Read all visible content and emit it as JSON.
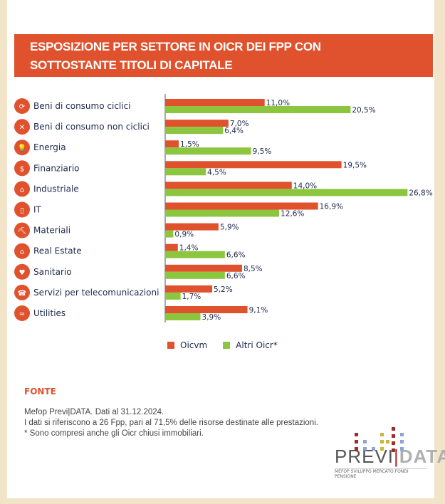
{
  "title_lines": [
    "ESPOSIZIONE PER SETTORE IN OICR DEI FPP CON",
    "SOTTOSTANTE  TITOLI DI CAPITALE"
  ],
  "chart_data": {
    "type": "bar",
    "orientation": "horizontal",
    "categories": [
      "Beni di consumo ciclici",
      "Beni di consumo non ciclici",
      "Energia",
      "Finanziario",
      "Industriale",
      "IT",
      "Materiali",
      "Real Estate",
      "Sanitario",
      "Servizi per telecomunicazioni",
      "Utilities"
    ],
    "series": [
      {
        "name": "Oicvm",
        "color": "#e0522d",
        "values": [
          11.0,
          7.0,
          1.5,
          19.5,
          14.0,
          16.9,
          5.9,
          1.4,
          8.5,
          5.2,
          9.1
        ],
        "labels": [
          "11,0%",
          "7,0%",
          "1,5%",
          "19,5%",
          "14,0%",
          "16,9%",
          "5,9%",
          "1,4%",
          "8,5%",
          "5,2%",
          "9,1%"
        ]
      },
      {
        "name": "Altri Oicr*",
        "color": "#8cc63f",
        "values": [
          20.5,
          6.4,
          9.5,
          4.5,
          26.8,
          12.6,
          0.9,
          6.6,
          6.6,
          1.7,
          3.9
        ],
        "labels": [
          "20,5%",
          "6,4%",
          "9,5%",
          "4,5%",
          "26,8%",
          "12,6%",
          "0,9%",
          "6,6%",
          "6,6%",
          "1,7%",
          "3,9%"
        ]
      }
    ],
    "xlim": [
      0,
      30
    ],
    "legend": "bottom"
  },
  "fonte": {
    "label": "FONTE",
    "lines": [
      "Mefop Previ|DATA. Dati al 31.12.2024.",
      "I dati si riferiscono a 26 Fpp, pari al 71,5% delle risorse destinate alle prestazioni.",
      "* Sono compresi anche gli Oicr chiusi immobiliari."
    ]
  },
  "logo": {
    "a": "PREVI",
    "b": "DATA",
    "sub": "MEFOP SVILUPPO MERCATO FONDI PENSIONE"
  }
}
